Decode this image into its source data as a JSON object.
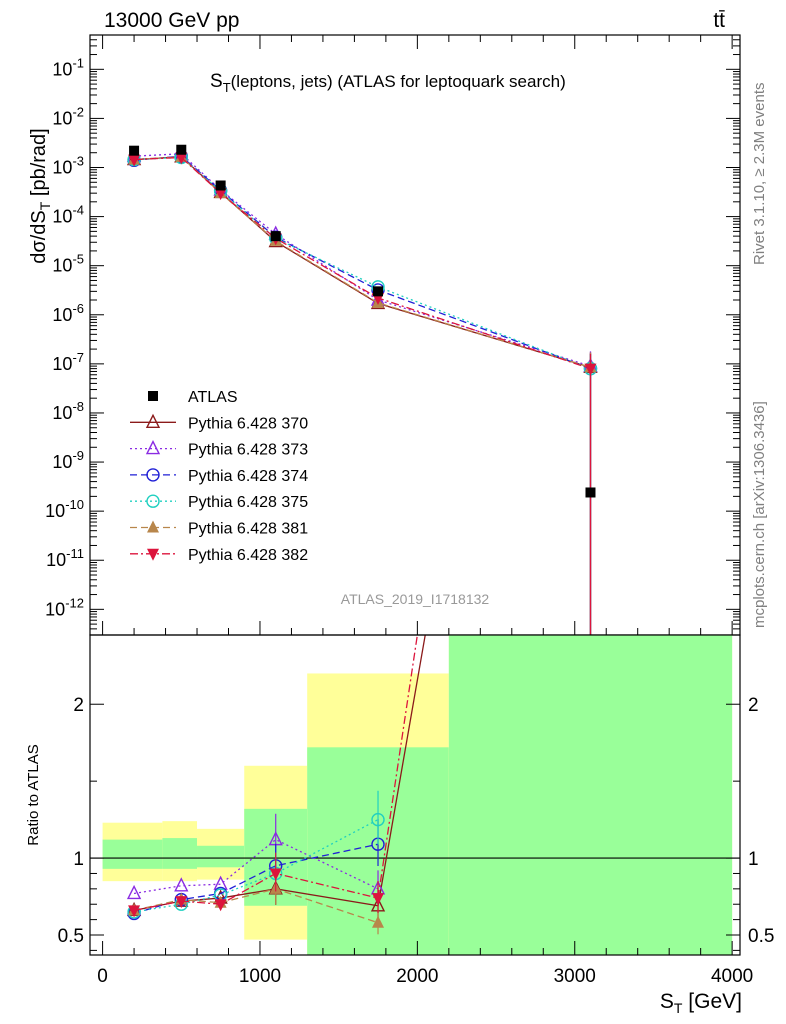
{
  "header": {
    "energy_label": "13000 GeV pp",
    "process_label": "tt̄"
  },
  "side_labels": {
    "rivet": "Rivet 3.1.10, ≥ 2.3M events",
    "mcplots": "mcplots.cern.ch [arXiv:1306.3436]"
  },
  "chart_data": [
    {
      "type": "scatter",
      "panel": "main",
      "title_main": "S",
      "title_sub": "T",
      "title_rest": "(leptons, jets) (ATLAS for leptoquark search)",
      "analysis_label": "ATLAS_2019_I1718132",
      "ylabel_pre": "dσ/dS",
      "ylabel_sub": "T",
      "ylabel_post": " [pb/rad]",
      "yscale": "log",
      "ylim": [
        3e-13,
        0.5
      ],
      "xlim": [
        -80,
        4050
      ],
      "ytick_labels": [
        "10^-12",
        "10^-11",
        "10^-10",
        "10^-9",
        "10^-8",
        "10^-7",
        "10^-6",
        "10^-5",
        "10^-4",
        "10^-3",
        "10^-2",
        "10^-1"
      ],
      "ytick_exponents": [
        -12,
        -11,
        -10,
        -9,
        -8,
        -7,
        -6,
        -5,
        -4,
        -3,
        -2,
        -1
      ],
      "legend_position": "lower-left",
      "series": [
        {
          "name": "ATLAS",
          "color": "#000000",
          "marker": "square",
          "line": "none",
          "legend_label": "ATLAS",
          "x": [
            200,
            500,
            750,
            1100,
            1750,
            3100
          ],
          "y": [
            0.0022,
            0.0023,
            0.00043,
            4e-05,
            3e-06,
            2.4e-10
          ]
        },
        {
          "name": "Pythia 6.428 370",
          "color": "#8b1a1a",
          "marker": "triangle-open",
          "line": "solid",
          "legend_label": "Pythia 6.428 370",
          "x": [
            200,
            500,
            750,
            1100,
            1750,
            3100
          ],
          "y": [
            0.00145,
            0.00165,
            0.00031,
            3.1e-05,
            1.7e-06,
            8.5e-08
          ]
        },
        {
          "name": "Pythia 6.428 373",
          "color": "#8a2be2",
          "marker": "triangle-open",
          "line": "dotted",
          "legend_label": "Pythia 6.428 373",
          "x": [
            200,
            500,
            750,
            1100,
            1750,
            3100
          ],
          "y": [
            0.0017,
            0.0019,
            0.00035,
            4.4e-05,
            2e-06,
            9e-08
          ]
        },
        {
          "name": "Pythia 6.428 374",
          "color": "#1f1fd6",
          "marker": "circle-open",
          "line": "dashed",
          "legend_label": "Pythia 6.428 374",
          "x": [
            200,
            500,
            750,
            1100,
            1750,
            3100
          ],
          "y": [
            0.0014,
            0.0017,
            0.00034,
            3.8e-05,
            3.2e-06,
            8e-08
          ]
        },
        {
          "name": "Pythia 6.428 375",
          "color": "#20d0c0",
          "marker": "circle-open",
          "line": "dotted",
          "legend_label": "Pythia 6.428 375",
          "x": [
            200,
            500,
            750,
            1100,
            1750,
            3100
          ],
          "y": [
            0.00145,
            0.0016,
            0.00033,
            3.6e-05,
            3.7e-06,
            8e-08
          ]
        },
        {
          "name": "Pythia 6.428 381",
          "color": "#b8864b",
          "marker": "triangle-filled",
          "line": "dashed",
          "legend_label": "Pythia 6.428 381",
          "x": [
            200,
            500,
            750,
            1100,
            1750,
            3100
          ],
          "y": [
            0.00145,
            0.00165,
            0.0003,
            3.2e-05,
            1.75e-06,
            8.5e-08
          ]
        },
        {
          "name": "Pythia 6.428 382",
          "color": "#dc143c",
          "marker": "triangle-down-filled",
          "line": "dashdot",
          "legend_label": "Pythia 6.428 382",
          "x": [
            200,
            500,
            750,
            1100,
            1750,
            3100
          ],
          "y": [
            0.00145,
            0.0016,
            0.0003,
            3.6e-05,
            2.2e-06,
            8e-08
          ]
        }
      ]
    },
    {
      "type": "scatter",
      "panel": "ratio",
      "ylabel": "Ratio to ATLAS",
      "xlabel_pre": "S",
      "xlabel_sub": "T",
      "xlabel_post": " [GeV]",
      "ylim": [
        0.37,
        2.45
      ],
      "xlim": [
        -80,
        4050
      ],
      "xticks": [
        0,
        1000,
        2000,
        3000,
        4000
      ],
      "xtick_labels": [
        "0",
        "1000",
        "2000",
        "3000",
        "4000"
      ],
      "yticks": [
        0.5,
        1,
        2
      ],
      "ytick_labels": [
        "0.5",
        "1",
        "2"
      ],
      "bands": [
        {
          "x0": 0,
          "x1": 380,
          "yellow": [
            0.85,
            1.23
          ],
          "green": [
            0.93,
            1.12
          ]
        },
        {
          "x0": 380,
          "x1": 600,
          "yellow": [
            0.85,
            1.24
          ],
          "green": [
            0.93,
            1.13
          ]
        },
        {
          "x0": 600,
          "x1": 900,
          "yellow": [
            0.86,
            1.19
          ],
          "green": [
            0.94,
            1.08
          ]
        },
        {
          "x0": 900,
          "x1": 1300,
          "yellow": [
            0.47,
            1.6
          ],
          "green": [
            0.69,
            1.32
          ]
        },
        {
          "x0": 1300,
          "x1": 2200,
          "yellow": [
            0.37,
            2.2
          ],
          "green": [
            0.37,
            1.72
          ]
        },
        {
          "x0": 2200,
          "x1": 4000,
          "yellow": [
            0.37,
            2.45
          ],
          "green": [
            0.37,
            2.45
          ]
        }
      ],
      "series": [
        {
          "name": "Pythia 6.428 370",
          "x": [
            200,
            500,
            750,
            1100,
            1750,
            2050
          ],
          "y": [
            0.66,
            0.72,
            0.74,
            0.8,
            0.69,
            2.45
          ]
        },
        {
          "name": "Pythia 6.428 373",
          "x": [
            200,
            500,
            750,
            1100,
            1750
          ],
          "y": [
            0.77,
            0.82,
            0.83,
            1.12,
            0.8
          ]
        },
        {
          "name": "Pythia 6.428 374",
          "x": [
            200,
            500,
            750,
            1100,
            1750
          ],
          "y": [
            0.64,
            0.73,
            0.77,
            0.95,
            1.09
          ]
        },
        {
          "name": "Pythia 6.428 375",
          "x": [
            200,
            500,
            750,
            1100,
            1750
          ],
          "y": [
            0.65,
            0.7,
            0.76,
            0.9,
            1.25
          ]
        },
        {
          "name": "Pythia 6.428 381",
          "x": [
            200,
            500,
            750,
            1100,
            1750
          ],
          "y": [
            0.66,
            0.73,
            0.71,
            0.8,
            0.58
          ]
        },
        {
          "name": "Pythia 6.428 382",
          "x": [
            200,
            500,
            750,
            1100,
            1750,
            2000
          ],
          "y": [
            0.66,
            0.72,
            0.7,
            0.9,
            0.74,
            2.45
          ]
        }
      ]
    }
  ]
}
